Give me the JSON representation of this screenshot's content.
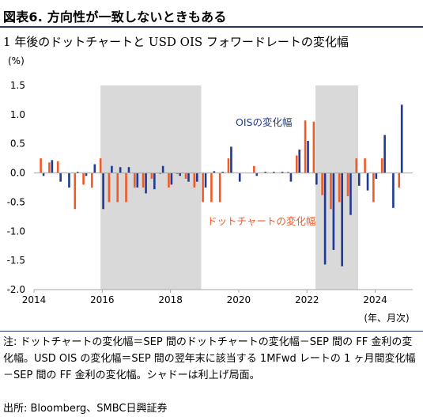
{
  "header": {
    "title": "図表6. 方向性が一致しないときもある",
    "subtitle": "1 年後のドットチャートと USD OIS フォワードレートの変化幅",
    "unit": "(%)"
  },
  "footer": {
    "notes": "注: ドットチャートの変化幅＝SEP 間のドットチャートの変化幅－SEP 間の FF 金利の変化幅。USD OIS の変化幅＝SEP 間の翌年末に該当する 1MFwd レートの 1 ヶ月間変化幅－SEP 間の FF 金利の変化幅。シャドーは利上げ局面。",
    "source": "出所: Bloomberg、SMBC日興証券"
  },
  "colors": {
    "dot": "#f05a28",
    "ois": "#1f3a93",
    "shade": "#d9d9d9",
    "axis": "#a6a6a6"
  },
  "chart_data": {
    "type": "bar",
    "xlabel": "(年、月次)",
    "ylabel": "(%)",
    "ylim": [
      -2.0,
      1.5
    ],
    "yticks": [
      "1.5",
      "1.0",
      "0.5",
      "0.0",
      "-0.5",
      "-1.0",
      "-1.5",
      "-2.0"
    ],
    "xlim": [
      2014.0,
      2025.1
    ],
    "xticks": [
      "2014",
      "2016",
      "2018",
      "2020",
      "2022",
      "2024"
    ],
    "shaded_periods": [
      [
        2015.95,
        2018.9
      ],
      [
        2022.25,
        2023.5
      ]
    ],
    "annotations": [
      {
        "text": "OISの変化幅",
        "series": "OIS"
      },
      {
        "text": "ドットチャートの変化幅",
        "series": "Dot"
      }
    ],
    "series": [
      {
        "name": "ドットチャートの変化幅",
        "points": [
          [
            2014.2,
            0.25
          ],
          [
            2014.45,
            0.18
          ],
          [
            2014.7,
            0.2
          ],
          [
            2015.2,
            -0.62
          ],
          [
            2015.45,
            -0.2
          ],
          [
            2015.7,
            -0.25
          ],
          [
            2015.95,
            0.25
          ],
          [
            2016.2,
            -0.5
          ],
          [
            2016.45,
            -0.5
          ],
          [
            2016.7,
            -0.5
          ],
          [
            2016.95,
            -0.25
          ],
          [
            2017.2,
            -0.25
          ],
          [
            2017.45,
            -0.1
          ],
          [
            2017.7,
            -0.02
          ],
          [
            2017.95,
            -0.25
          ],
          [
            2018.2,
            -0.02
          ],
          [
            2018.45,
            -0.1
          ],
          [
            2018.7,
            -0.25
          ],
          [
            2018.95,
            -0.5
          ],
          [
            2019.2,
            -0.5
          ],
          [
            2019.45,
            -0.5
          ],
          [
            2019.7,
            0.25
          ],
          [
            2020.45,
            0.12
          ],
          [
            2021.45,
            0.02
          ],
          [
            2021.7,
            0.3
          ],
          [
            2021.95,
            0.9
          ],
          [
            2022.2,
            0.88
          ],
          [
            2022.45,
            -0.38
          ],
          [
            2022.7,
            -0.62
          ],
          [
            2022.95,
            -0.5
          ],
          [
            2023.2,
            -0.4
          ],
          [
            2023.45,
            0.25
          ],
          [
            2023.7,
            0.25
          ],
          [
            2023.95,
            -0.5
          ],
          [
            2024.2,
            0.25
          ],
          [
            2024.7,
            -0.25
          ]
        ]
      },
      {
        "name": "OISの変化幅",
        "points": [
          [
            2014.28,
            -0.05
          ],
          [
            2014.53,
            0.22
          ],
          [
            2014.78,
            -0.15
          ],
          [
            2015.03,
            -0.25
          ],
          [
            2015.28,
            0.02
          ],
          [
            2015.53,
            -0.05
          ],
          [
            2015.78,
            0.15
          ],
          [
            2016.03,
            -0.62
          ],
          [
            2016.28,
            0.12
          ],
          [
            2016.53,
            0.1
          ],
          [
            2016.78,
            0.1
          ],
          [
            2017.03,
            -0.25
          ],
          [
            2017.28,
            -0.35
          ],
          [
            2017.53,
            -0.28
          ],
          [
            2017.78,
            0.12
          ],
          [
            2018.03,
            -0.2
          ],
          [
            2018.28,
            -0.05
          ],
          [
            2018.53,
            -0.15
          ],
          [
            2018.78,
            -0.15
          ],
          [
            2019.03,
            -0.25
          ],
          [
            2019.28,
            0.03
          ],
          [
            2019.53,
            0.02
          ],
          [
            2019.78,
            0.45
          ],
          [
            2020.03,
            -0.15
          ],
          [
            2020.53,
            -0.05
          ],
          [
            2020.78,
            0.02
          ],
          [
            2021.03,
            0.02
          ],
          [
            2021.28,
            0.02
          ],
          [
            2021.53,
            -0.15
          ],
          [
            2021.78,
            0.4
          ],
          [
            2022.03,
            0.55
          ],
          [
            2022.28,
            -0.2
          ],
          [
            2022.53,
            -1.57
          ],
          [
            2022.78,
            -1.32
          ],
          [
            2023.03,
            -1.6
          ],
          [
            2023.28,
            -0.72
          ],
          [
            2023.53,
            -0.22
          ],
          [
            2023.78,
            -0.3
          ],
          [
            2024.03,
            -0.1
          ],
          [
            2024.28,
            0.65
          ],
          [
            2024.53,
            -0.6
          ],
          [
            2024.78,
            1.17
          ]
        ]
      }
    ]
  }
}
